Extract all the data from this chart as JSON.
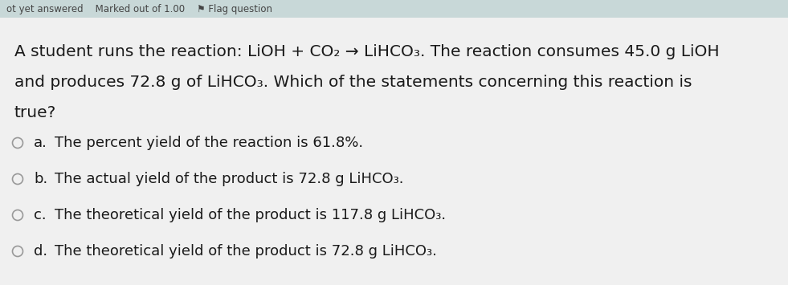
{
  "bg_top": "#c8d8d8",
  "bg_main": "#f0f0f0",
  "header_text": "ot yet answered    Marked out of 1.00    ⚑ Flag question",
  "header_fontsize": 8.5,
  "header_color": "#444444",
  "question_line1": "A student runs the reaction: LiOH + CO₂ → LiHCO₃. The reaction consumes 45.0 g LiOH",
  "question_line2": "and produces 72.8 g of LiHCO₃. Which of the statements concerning this reaction is",
  "question_line3": "true?",
  "options": [
    {
      "label": "a.",
      "text": "The percent yield of the reaction is 61.8%."
    },
    {
      "label": "b.",
      "text": "The actual yield of the product is 72.8 g LiHCO₃."
    },
    {
      "label": "c.",
      "text": "The theoretical yield of the product is 117.8 g LiHCO₃."
    },
    {
      "label": "d.",
      "text": "The theoretical yield of the product is 72.8 g LiHCO₃."
    }
  ],
  "question_fontsize": 14.5,
  "option_fontsize": 13.0,
  "text_color": "#1a1a1a",
  "circle_color": "#999999",
  "fig_width": 9.81,
  "fig_height": 3.55,
  "dpi": 100
}
